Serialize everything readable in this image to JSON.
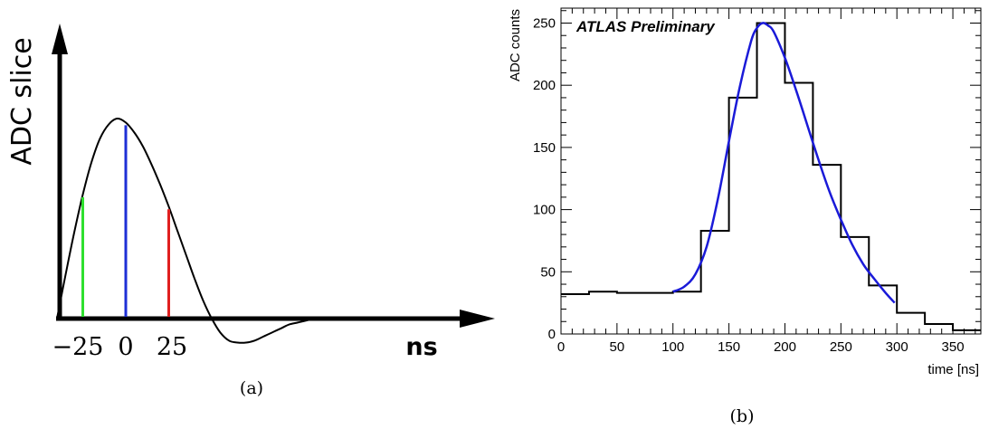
{
  "panel_a": {
    "caption": "(a)",
    "ylabel": "ADC slice",
    "xunit": "ns",
    "tick_labels": [
      "−25",
      "0",
      "25"
    ],
    "sample_colors": {
      "early": "#2ee02e",
      "peak": "#1e2fd6",
      "late": "#e02020"
    }
  },
  "panel_b": {
    "caption": "(b)",
    "title": "ATLAS Preliminary"
  },
  "chart_data": [
    {
      "type": "line",
      "panel": "a",
      "title": "",
      "ylabel": "ADC slice",
      "xlabel": "ns",
      "x_ticks": [
        -25,
        0,
        25
      ],
      "samples": [
        {
          "x": -25,
          "color": "#2ee02e"
        },
        {
          "x": 0,
          "color": "#1e2fd6"
        },
        {
          "x": 25,
          "color": "#e02020"
        }
      ],
      "curve_x": [
        -40,
        -35,
        -30,
        -25,
        -20,
        -15,
        -10,
        -5,
        0,
        5,
        10,
        15,
        20,
        25,
        30,
        35,
        40,
        45,
        50,
        55,
        60,
        65,
        70,
        75,
        80,
        85,
        90,
        95,
        100,
        105,
        110,
        115,
        120,
        125
      ],
      "curve_y": [
        0,
        0.22,
        0.43,
        0.62,
        0.78,
        0.9,
        0.97,
        1.0,
        0.98,
        0.93,
        0.86,
        0.77,
        0.67,
        0.56,
        0.44,
        0.32,
        0.2,
        0.09,
        0,
        -0.07,
        -0.11,
        -0.12,
        -0.12,
        -0.11,
        -0.09,
        -0.07,
        -0.05,
        -0.03,
        -0.02,
        -0.01,
        0,
        0,
        0,
        0
      ],
      "grid": false
    },
    {
      "type": "histogram",
      "panel": "b",
      "title": "ATLAS Preliminary",
      "xlabel": "time [ns]",
      "ylabel": "ADC counts",
      "xlim": [
        0,
        375
      ],
      "ylim": [
        0,
        262
      ],
      "x_ticks": [
        0,
        50,
        100,
        150,
        200,
        250,
        300,
        350
      ],
      "y_ticks": [
        0,
        50,
        100,
        150,
        200,
        250
      ],
      "bin_edges": [
        0,
        25,
        50,
        75,
        100,
        125,
        150,
        175,
        200,
        225,
        250,
        275,
        300,
        325,
        350,
        375
      ],
      "bin_values": [
        32,
        34,
        33,
        33,
        34,
        83,
        190,
        250,
        202,
        136,
        78,
        39,
        17,
        8,
        3
      ],
      "fit": {
        "color": "#1a1ad8",
        "x": [
          100,
          110,
          120,
          130,
          140,
          150,
          160,
          170,
          175,
          180,
          185,
          190,
          200,
          210,
          220,
          230,
          240,
          250,
          260,
          270,
          280,
          290,
          298
        ],
        "y": [
          34,
          38,
          48,
          70,
          108,
          155,
          200,
          236,
          246,
          250,
          248,
          243,
          222,
          196,
          168,
          140,
          114,
          92,
          72,
          56,
          44,
          33,
          25
        ]
      },
      "grid": false,
      "legend": "none"
    }
  ]
}
